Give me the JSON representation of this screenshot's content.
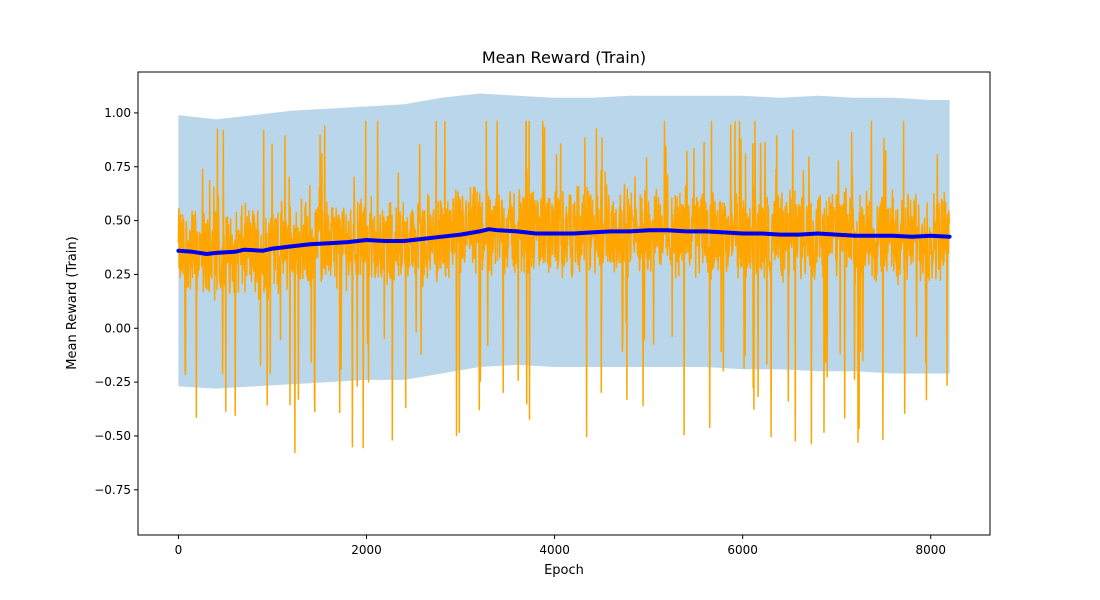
{
  "chart_data": {
    "type": "line",
    "title": "Mean Reward (Train)",
    "xlabel": "Epoch",
    "ylabel": "Mean Reward (Train)",
    "xlim": [
      -430,
      8630
    ],
    "ylim": [
      -0.96,
      1.19
    ],
    "x_ticks": [
      0,
      2000,
      4000,
      6000,
      8000
    ],
    "x_tick_labels": [
      "0",
      "2000",
      "4000",
      "6000",
      "8000"
    ],
    "y_ticks": [
      -0.75,
      -0.5,
      -0.25,
      0.0,
      0.25,
      0.5,
      0.75,
      1.0
    ],
    "y_tick_labels": [
      "−0.75",
      "−0.50",
      "−0.25",
      "0.00",
      "0.25",
      "0.50",
      "0.75",
      "1.00"
    ],
    "grid": false,
    "legend": "none",
    "series": [
      {
        "kind": "band",
        "color": "#bad6ea",
        "x": [
          0,
          400,
          800,
          1200,
          1600,
          2000,
          2400,
          2800,
          3200,
          3600,
          4000,
          4400,
          4800,
          5200,
          5600,
          6000,
          6400,
          6800,
          7200,
          7600,
          8000,
          8200
        ],
        "upper": [
          0.99,
          0.97,
          0.99,
          1.01,
          1.02,
          1.03,
          1.04,
          1.07,
          1.09,
          1.08,
          1.07,
          1.07,
          1.08,
          1.08,
          1.08,
          1.08,
          1.07,
          1.08,
          1.07,
          1.07,
          1.06,
          1.06
        ],
        "lower": [
          -0.27,
          -0.28,
          -0.27,
          -0.26,
          -0.25,
          -0.24,
          -0.24,
          -0.21,
          -0.18,
          -0.17,
          -0.18,
          -0.18,
          -0.18,
          -0.18,
          -0.18,
          -0.19,
          -0.19,
          -0.2,
          -0.2,
          -0.21,
          -0.21,
          -0.21
        ]
      },
      {
        "kind": "noisy_line",
        "color": "#ffa500",
        "x_start": 0,
        "x_end": 8200,
        "samples": 2200,
        "spread": 0.18,
        "spike_down_min": -0.88,
        "spike_up_max": 0.96
      },
      {
        "kind": "line",
        "color": "#0000ee",
        "x": [
          0,
          150,
          300,
          400,
          600,
          700,
          900,
          1000,
          1200,
          1400,
          1600,
          1800,
          2000,
          2200,
          2400,
          2600,
          2800,
          3000,
          3200,
          3300,
          3400,
          3600,
          3800,
          4000,
          4200,
          4400,
          4600,
          4800,
          5000,
          5200,
          5400,
          5600,
          5800,
          6000,
          6200,
          6400,
          6600,
          6800,
          7000,
          7200,
          7400,
          7600,
          7800,
          8000,
          8200
        ],
        "y": [
          0.36,
          0.355,
          0.345,
          0.35,
          0.355,
          0.365,
          0.36,
          0.37,
          0.38,
          0.39,
          0.395,
          0.4,
          0.41,
          0.405,
          0.405,
          0.415,
          0.425,
          0.435,
          0.45,
          0.46,
          0.455,
          0.45,
          0.44,
          0.44,
          0.44,
          0.445,
          0.45,
          0.45,
          0.455,
          0.455,
          0.45,
          0.45,
          0.445,
          0.44,
          0.44,
          0.435,
          0.435,
          0.44,
          0.435,
          0.43,
          0.43,
          0.43,
          0.425,
          0.43,
          0.425
        ]
      }
    ]
  }
}
